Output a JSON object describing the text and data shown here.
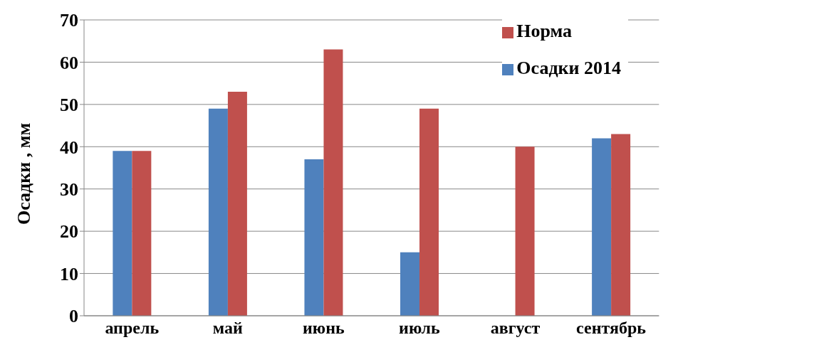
{
  "chart_data": {
    "type": "bar",
    "ylabel": "Осадки , мм",
    "categories": [
      "апрель",
      "май",
      "июнь",
      "июль",
      "август",
      "сентябрь"
    ],
    "series": [
      {
        "name": "Осадки 2014",
        "color": "#4f81bd",
        "values": [
          39,
          49,
          37,
          15,
          0,
          42
        ]
      },
      {
        "name": "Норма",
        "color": "#c0504d",
        "values": [
          39,
          53,
          63,
          49,
          40,
          43
        ]
      }
    ],
    "ylim": [
      0,
      70
    ],
    "yticks": [
      0,
      10,
      20,
      30,
      40,
      50,
      60,
      70
    ],
    "grid": "y",
    "legend": "top right"
  }
}
